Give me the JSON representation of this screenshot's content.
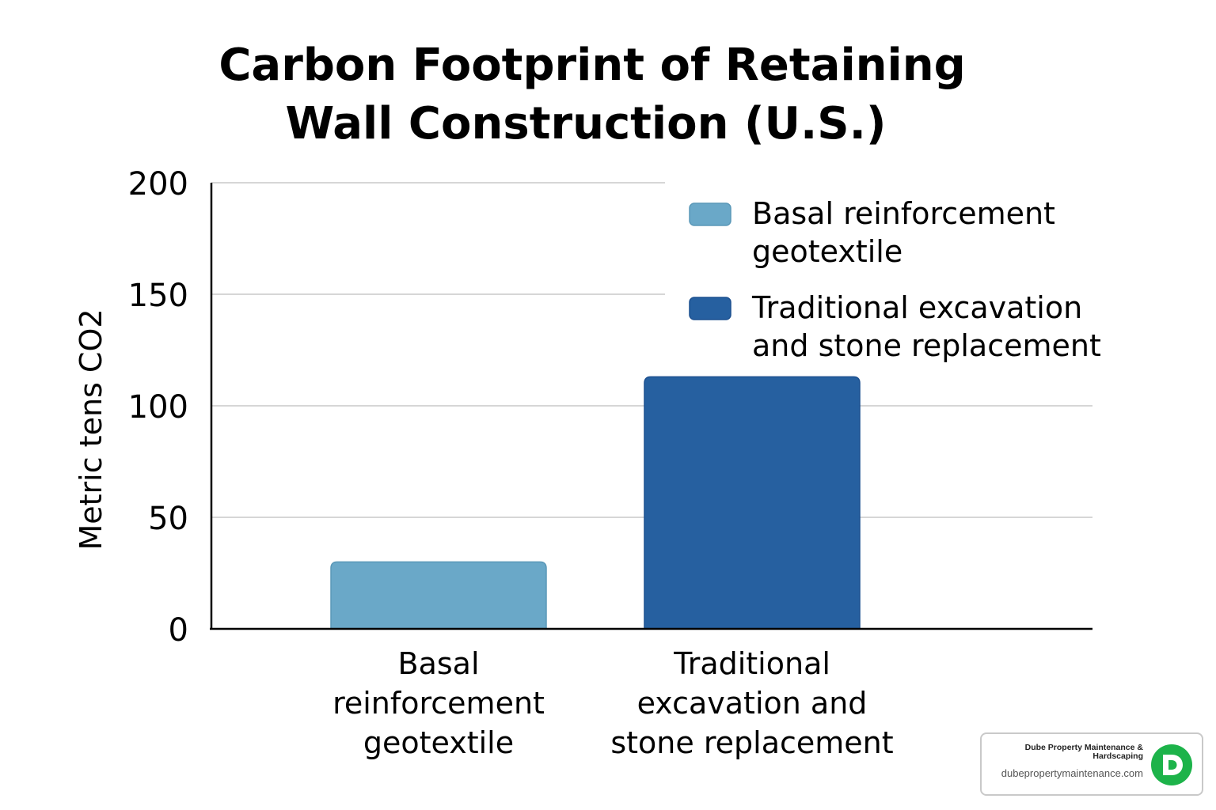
{
  "chart_data": {
    "type": "bar",
    "title": [
      "Carbon Footprint of Retaining",
      "Wall Construction (U.S.)"
    ],
    "ylabel": "Metric tens CO2",
    "xlabel": "",
    "ylim": [
      0,
      200
    ],
    "yticks": [
      "0",
      "50",
      "100",
      "150",
      "200"
    ],
    "ytick_values": [
      0,
      50,
      100,
      150,
      200
    ],
    "grid": true,
    "legend_position": "top-right",
    "categories": [
      [
        "Basal",
        "reinforcement",
        "geotextile"
      ],
      [
        "Traditional",
        "excavation and",
        "stone replacement"
      ]
    ],
    "values": [
      30,
      113
    ],
    "colors": [
      "#6aa8c8",
      "#2660a0"
    ],
    "legend": [
      {
        "label": [
          "Basal reinforcement",
          "geotextile"
        ],
        "color": "#6aa8c8"
      },
      {
        "label": [
          "Traditional excavation",
          "and stone replacement"
        ],
        "color": "#2660a0"
      }
    ]
  },
  "watermark": {
    "name": "Dube Property Maintenance & Hardscaping",
    "url": "dubepropertymaintenance.com",
    "logo_letter": "D",
    "logo_color": "#1db34a"
  }
}
